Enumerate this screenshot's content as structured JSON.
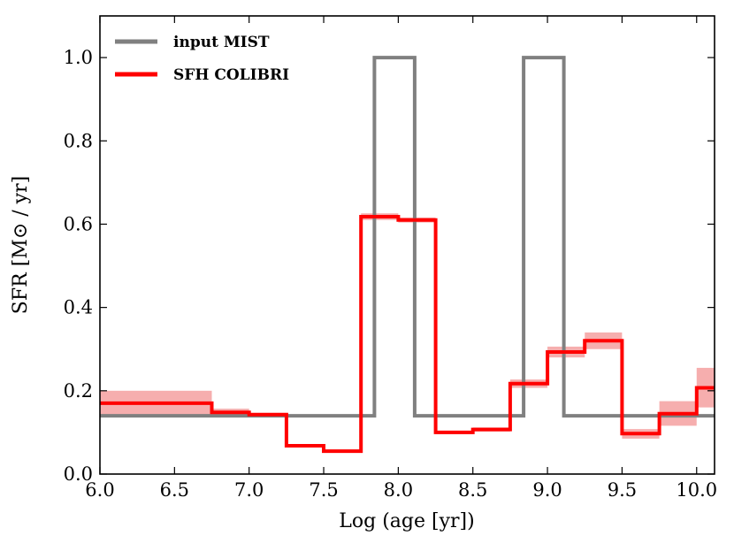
{
  "chart_data": {
    "type": "line",
    "title": "",
    "xlabel": "Log (age [yr])",
    "ylabel": "SFR [M⊙ / yr]",
    "xlim": [
      6.0,
      10.12
    ],
    "ylim": [
      0.0,
      1.1
    ],
    "x_ticks": [
      6.0,
      6.5,
      7.0,
      7.5,
      8.0,
      8.5,
      9.0,
      9.5,
      10.0
    ],
    "x_tick_labels": [
      "6.0",
      "6.5",
      "7.0",
      "7.5",
      "8.0",
      "8.5",
      "9.0",
      "9.5",
      "10.0"
    ],
    "y_ticks": [
      0.0,
      0.2,
      0.4,
      0.6,
      0.8,
      1.0
    ],
    "y_tick_labels": [
      "0.0",
      "0.2",
      "0.4",
      "0.6",
      "0.8",
      "1.0"
    ],
    "legend_position": "top-left",
    "series": [
      {
        "name": "input MIST",
        "color": "#808080",
        "step_x": [
          6.0,
          7.84,
          7.84,
          8.11,
          8.11,
          8.84,
          8.84,
          9.11,
          9.11,
          10.12
        ],
        "step_y": [
          0.14,
          0.14,
          1.0,
          1.0,
          0.14,
          0.14,
          1.0,
          1.0,
          0.14,
          0.14
        ]
      },
      {
        "name": "SFH COLIBRI",
        "color": "#ff0000",
        "band_color": "#f4a0a0",
        "bins": [
          {
            "x0": 6.0,
            "x1": 6.75,
            "y": 0.17,
            "lo": 0.14,
            "hi": 0.2
          },
          {
            "x0": 6.75,
            "x1": 7.0,
            "y": 0.148,
            "lo": 0.14,
            "hi": 0.157
          },
          {
            "x0": 7.0,
            "x1": 7.25,
            "y": 0.143,
            "lo": 0.14,
            "hi": 0.146
          },
          {
            "x0": 7.25,
            "x1": 7.5,
            "y": 0.068,
            "lo": 0.064,
            "hi": 0.072
          },
          {
            "x0": 7.5,
            "x1": 7.75,
            "y": 0.055,
            "lo": 0.051,
            "hi": 0.059
          },
          {
            "x0": 7.75,
            "x1": 8.0,
            "y": 0.618,
            "lo": 0.61,
            "hi": 0.626
          },
          {
            "x0": 8.0,
            "x1": 8.25,
            "y": 0.61,
            "lo": 0.604,
            "hi": 0.616
          },
          {
            "x0": 8.25,
            "x1": 8.5,
            "y": 0.1,
            "lo": 0.096,
            "hi": 0.104
          },
          {
            "x0": 8.5,
            "x1": 8.75,
            "y": 0.107,
            "lo": 0.102,
            "hi": 0.112
          },
          {
            "x0": 8.75,
            "x1": 9.0,
            "y": 0.217,
            "lo": 0.207,
            "hi": 0.227
          },
          {
            "x0": 9.0,
            "x1": 9.25,
            "y": 0.293,
            "lo": 0.28,
            "hi": 0.306
          },
          {
            "x0": 9.25,
            "x1": 9.5,
            "y": 0.32,
            "lo": 0.3,
            "hi": 0.34
          },
          {
            "x0": 9.5,
            "x1": 9.75,
            "y": 0.097,
            "lo": 0.085,
            "hi": 0.108
          },
          {
            "x0": 9.75,
            "x1": 10.0,
            "y": 0.145,
            "lo": 0.116,
            "hi": 0.175
          },
          {
            "x0": 10.0,
            "x1": 10.12,
            "y": 0.207,
            "lo": 0.16,
            "hi": 0.255
          }
        ]
      }
    ]
  }
}
